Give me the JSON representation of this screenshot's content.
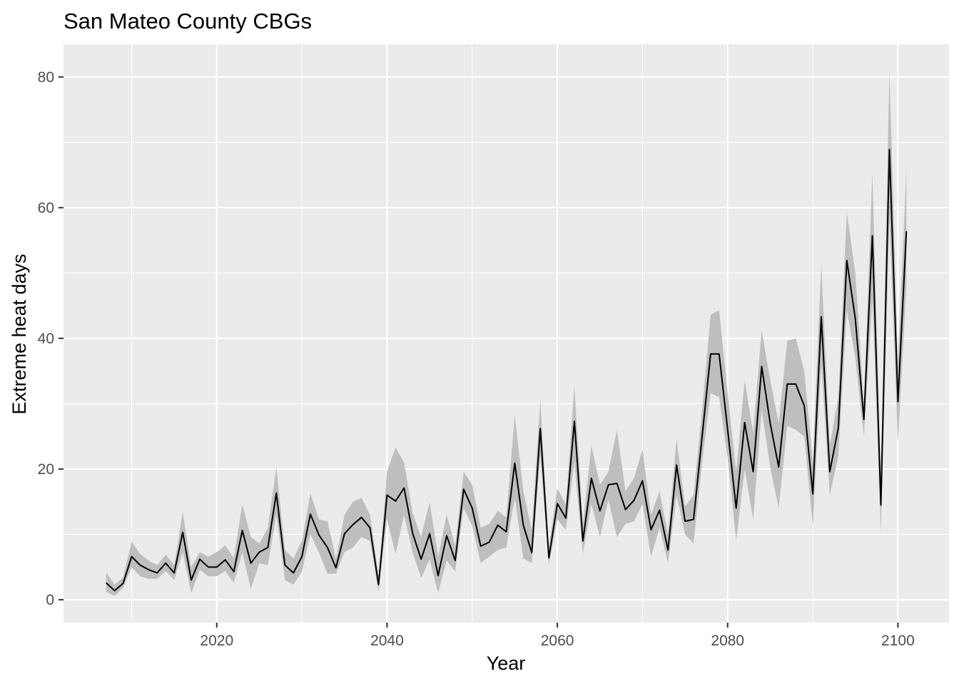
{
  "chart_data": {
    "type": "line",
    "title": "San Mateo County CBGs",
    "xlabel": "Year",
    "ylabel": "Extreme heat days",
    "xlim": [
      2002,
      2106
    ],
    "ylim": [
      -3.5,
      85
    ],
    "x_ticks": [
      2020,
      2040,
      2060,
      2080,
      2100
    ],
    "x_tick_labels": [
      "2020",
      "2040",
      "2060",
      "2080",
      "2100"
    ],
    "y_ticks": [
      0,
      20,
      40,
      60,
      80
    ],
    "y_tick_labels": [
      "0",
      "20",
      "40",
      "60",
      "80"
    ],
    "grid": true,
    "colors": {
      "panel": "#ebebeb",
      "grid": "#ffffff",
      "line": "#000000",
      "ribbon": "#bebebe",
      "text": "#4d4d4d"
    },
    "x": [
      2007,
      2008,
      2009,
      2010,
      2011,
      2012,
      2013,
      2014,
      2015,
      2016,
      2017,
      2018,
      2019,
      2020,
      2021,
      2022,
      2023,
      2024,
      2025,
      2026,
      2027,
      2028,
      2029,
      2030,
      2031,
      2032,
      2033,
      2034,
      2035,
      2036,
      2037,
      2038,
      2039,
      2040,
      2041,
      2042,
      2043,
      2044,
      2045,
      2046,
      2047,
      2048,
      2049,
      2050,
      2051,
      2052,
      2053,
      2054,
      2055,
      2056,
      2057,
      2058,
      2059,
      2060,
      2061,
      2062,
      2063,
      2064,
      2065,
      2066,
      2067,
      2068,
      2069,
      2070,
      2071,
      2072,
      2073,
      2074,
      2075,
      2076,
      2077,
      2078,
      2079,
      2080,
      2081,
      2082,
      2083,
      2084,
      2085,
      2086,
      2087,
      2088,
      2089,
      2090,
      2091,
      2092,
      2093,
      2094,
      2095,
      2096,
      2097,
      2098,
      2099,
      2100,
      2101
    ],
    "series": [
      {
        "values": [
          2.6,
          1.4,
          2.5,
          6.6,
          5.3,
          4.6,
          4.1,
          5.6,
          4.1,
          10.3,
          3.0,
          6.2,
          5.0,
          5.0,
          6.1,
          4.3,
          10.6,
          5.6,
          7.3,
          8.0,
          16.3,
          5.3,
          4.1,
          6.6,
          13.1,
          9.9,
          8.0,
          4.9,
          10.1,
          11.5,
          12.6,
          11.0,
          2.3,
          16.0,
          15.1,
          17.1,
          10.2,
          6.2,
          10.1,
          3.7,
          9.8,
          6.0,
          16.9,
          14.0,
          8.2,
          8.8,
          11.4,
          10.4,
          20.9,
          11.4,
          7.2,
          26.2,
          6.4,
          14.7,
          12.5,
          27.3,
          9.0,
          18.6,
          13.6,
          17.6,
          17.8,
          13.8,
          15.2,
          18.2,
          10.7,
          13.7,
          7.6,
          20.6,
          12.0,
          12.3,
          25.0,
          37.6,
          37.6,
          26.0,
          14.0,
          27.1,
          19.6,
          35.7,
          27.0,
          20.3,
          33.0,
          33.0,
          29.7,
          16.2,
          43.3,
          19.6,
          26.3,
          51.9,
          43.0,
          27.6,
          55.7,
          14.5,
          68.9,
          30.3,
          56.4
        ],
        "lower": [
          1.2,
          0.6,
          1.8,
          5.0,
          3.6,
          3.2,
          3.2,
          4.4,
          3.0,
          7.3,
          1.0,
          4.6,
          3.6,
          3.6,
          4.4,
          2.6,
          7.3,
          1.6,
          5.6,
          5.3,
          13.0,
          3.0,
          2.3,
          4.3,
          10.0,
          7.2,
          4.0,
          4.0,
          7.3,
          8.0,
          9.6,
          9.0,
          1.2,
          12.3,
          7.0,
          13.0,
          7.3,
          3.3,
          6.2,
          1.0,
          6.0,
          4.3,
          14.0,
          11.3,
          5.6,
          6.6,
          7.6,
          8.0,
          15.6,
          6.3,
          5.6,
          22.0,
          5.3,
          12.3,
          10.7,
          21.0,
          7.0,
          14.6,
          9.6,
          15.3,
          9.6,
          11.6,
          12.0,
          14.6,
          6.6,
          11.0,
          5.6,
          16.0,
          10.0,
          8.6,
          21.0,
          31.6,
          31.0,
          21.6,
          9.0,
          20.0,
          12.3,
          29.0,
          20.3,
          14.0,
          26.6,
          26.0,
          25.0,
          11.3,
          36.0,
          16.0,
          22.0,
          44.3,
          37.0,
          25.0,
          46.0,
          10.3,
          58.0,
          24.0,
          48.0
        ],
        "upper": [
          4.2,
          2.3,
          3.4,
          8.9,
          7.0,
          6.0,
          5.3,
          6.9,
          5.3,
          13.4,
          5.0,
          7.3,
          6.6,
          7.3,
          8.3,
          6.4,
          14.6,
          9.6,
          8.6,
          11.0,
          20.3,
          7.6,
          6.3,
          9.0,
          16.3,
          12.3,
          12.0,
          6.3,
          13.0,
          15.0,
          15.6,
          13.0,
          3.6,
          19.6,
          23.3,
          21.0,
          13.3,
          9.6,
          15.0,
          6.6,
          13.0,
          8.3,
          19.6,
          17.6,
          11.0,
          11.6,
          13.6,
          12.6,
          28.3,
          16.6,
          10.6,
          30.6,
          8.0,
          17.0,
          14.6,
          32.6,
          11.6,
          23.6,
          17.6,
          19.6,
          26.0,
          16.6,
          18.6,
          23.0,
          13.0,
          16.6,
          10.0,
          24.6,
          14.3,
          16.0,
          29.0,
          43.6,
          44.3,
          31.6,
          19.6,
          33.6,
          25.6,
          41.3,
          33.6,
          27.0,
          39.6,
          40.0,
          35.0,
          21.3,
          51.3,
          23.6,
          31.0,
          59.3,
          50.0,
          30.0,
          65.3,
          18.6,
          81.0,
          36.3,
          66.0
        ]
      }
    ]
  }
}
